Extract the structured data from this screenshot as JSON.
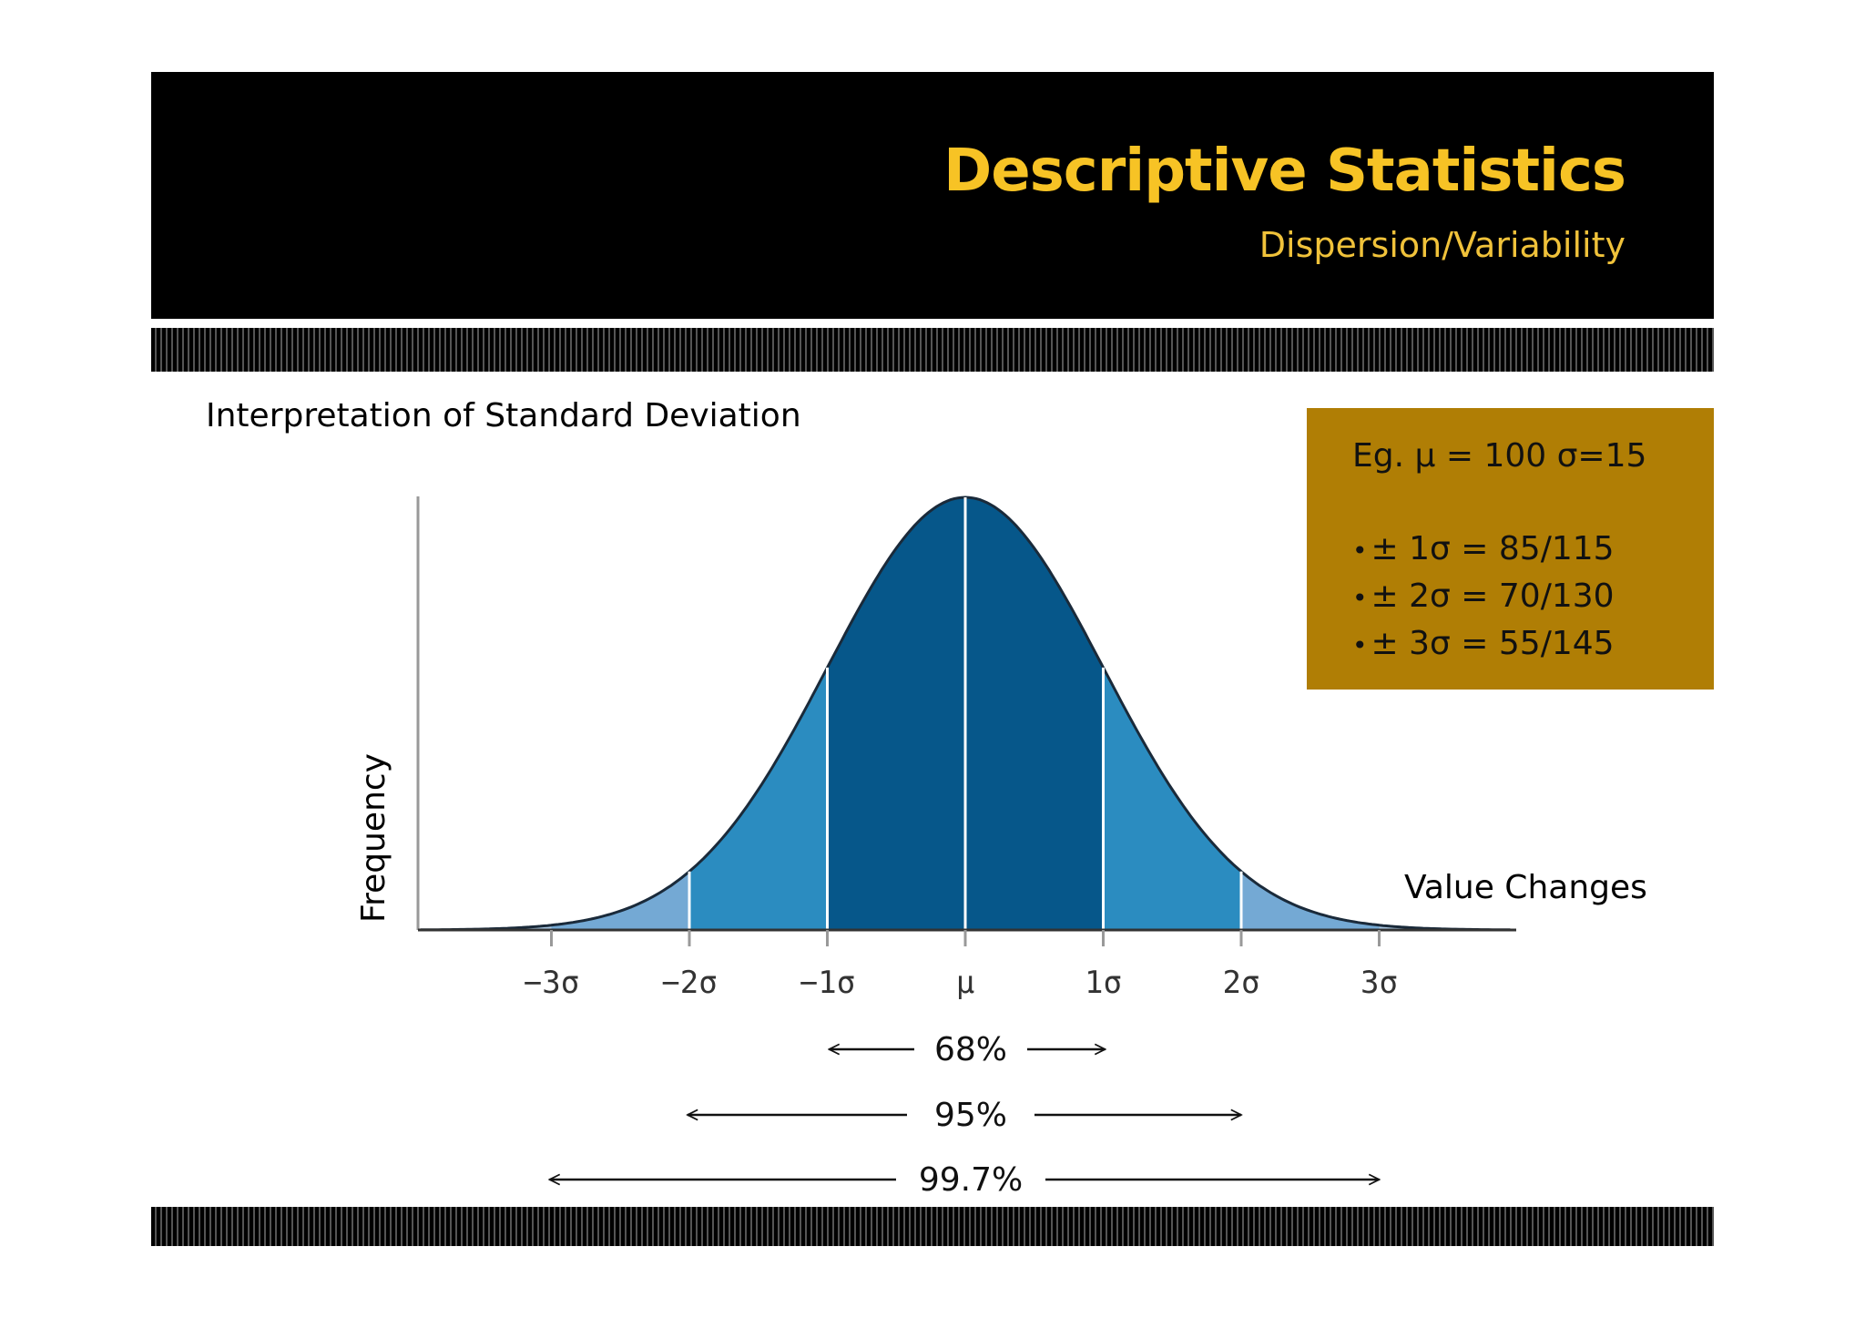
{
  "header": {
    "title": "Descriptive Statistics",
    "subtitle": "Dispersion/Variability"
  },
  "section_heading": "Interpretation of Standard Deviation",
  "info_box": {
    "example": "Eg. μ = 100  σ=15",
    "bullets": [
      "± 1σ  =  85/115",
      "± 2σ  = 70/130",
      "± 3σ  = 55/145"
    ],
    "background": "#b07e05"
  },
  "colors": {
    "header_bg": "#000000",
    "title": "#f7c325",
    "band_1sigma": "#06578a",
    "band_2sigma": "#2b8cc0",
    "band_3sigma": "#74a9d4",
    "band_tail": "#a9c7e2"
  },
  "chart_data": {
    "type": "area",
    "title": "",
    "xlabel": "Value Changes",
    "ylabel": "Frequency",
    "x_ticks": [
      "−3σ",
      "−2σ",
      "−1σ",
      "μ",
      "1σ",
      "2σ",
      "3σ"
    ],
    "x_range_sigma": [
      -3.95,
      3.95
    ],
    "distribution": "normal",
    "mean": 0,
    "sd": 1,
    "bands": [
      {
        "from": -1,
        "to": 1,
        "color": "#06578a"
      },
      {
        "from": -2,
        "to": -1,
        "color": "#2b8cc0"
      },
      {
        "from": 1,
        "to": 2,
        "color": "#2b8cc0"
      },
      {
        "from": -3,
        "to": -2,
        "color": "#74a9d4"
      },
      {
        "from": 2,
        "to": 3,
        "color": "#74a9d4"
      }
    ],
    "coverage": [
      {
        "label": "68%",
        "from": -1,
        "to": 1
      },
      {
        "label": "95%",
        "from": -2,
        "to": 2
      },
      {
        "label": "99.7%",
        "from": -3,
        "to": 3
      }
    ]
  }
}
